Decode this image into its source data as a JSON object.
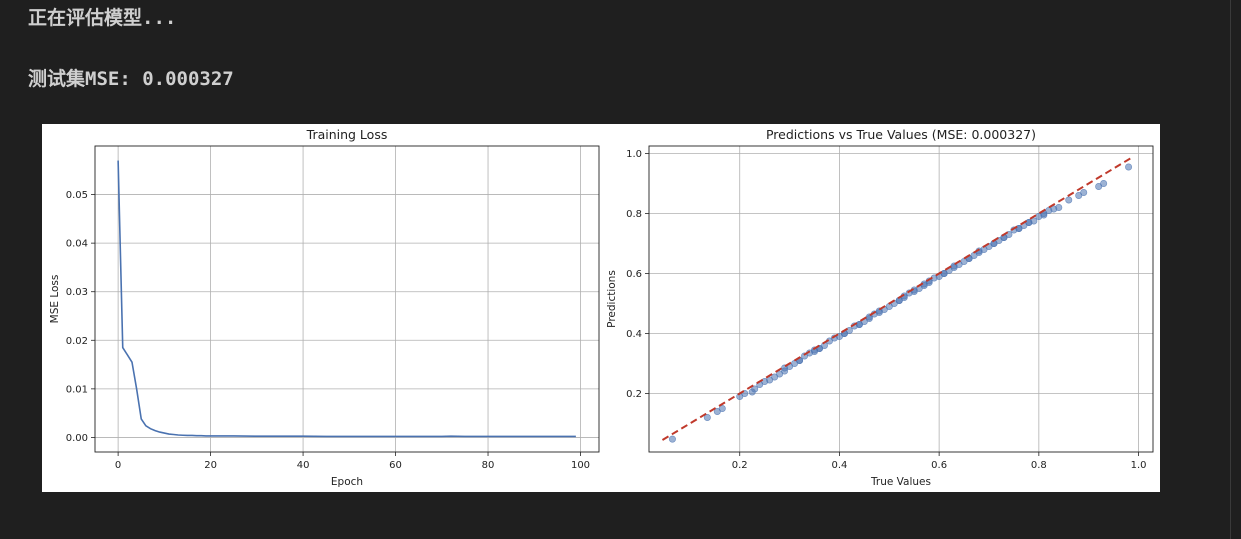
{
  "output": {
    "line1": "正在评估模型...",
    "line2": "测试集MSE: 0.000327"
  },
  "colors": {
    "background": "#1f1f1f",
    "text": "#cfcfcf",
    "loss_line": "#4a72b0",
    "scatter_points": "#4a72b0",
    "ideal_line": "#c0392b"
  },
  "chart_data": [
    {
      "type": "line",
      "title": "Training Loss",
      "xlabel": "Epoch",
      "ylabel": "MSE Loss",
      "xlim": [
        -5,
        104
      ],
      "ylim": [
        -0.003,
        0.06
      ],
      "xticks": [
        0,
        20,
        40,
        60,
        80,
        100
      ],
      "xtick_labels": [
        "0",
        "20",
        "40",
        "60",
        "80",
        "100"
      ],
      "yticks": [
        0.0,
        0.01,
        0.02,
        0.03,
        0.04,
        0.05
      ],
      "ytick_labels": [
        "0.00",
        "0.01",
        "0.02",
        "0.03",
        "0.04",
        "0.05"
      ],
      "grid": true,
      "series": [
        {
          "x": [
            0,
            1,
            2,
            3,
            4,
            5,
            6,
            7,
            8,
            9,
            10,
            11,
            12,
            13,
            14,
            15,
            16,
            17,
            18,
            19,
            20,
            22,
            25,
            30,
            35,
            40,
            45,
            50,
            55,
            60,
            65,
            70,
            72,
            75,
            80,
            85,
            90,
            95,
            99
          ],
          "y": [
            0.057,
            0.0185,
            0.017,
            0.0155,
            0.01,
            0.0038,
            0.0024,
            0.0018,
            0.0014,
            0.0011,
            0.0009,
            0.0007,
            0.0006,
            0.0005,
            0.00045,
            0.0004,
            0.0004,
            0.00035,
            0.00035,
            0.0003,
            0.0003,
            0.0003,
            0.0003,
            0.00025,
            0.00025,
            0.00025,
            0.0002,
            0.0002,
            0.0002,
            0.0002,
            0.0002,
            0.0002,
            0.00025,
            0.0002,
            0.0002,
            0.0002,
            0.0002,
            0.0002,
            0.0002
          ]
        }
      ]
    },
    {
      "type": "scatter",
      "title": "Predictions vs True Values (MSE: 0.000327)",
      "xlabel": "True Values",
      "ylabel": "Predictions",
      "xlim": [
        0.018,
        1.029
      ],
      "ylim": [
        0.005,
        1.025
      ],
      "xticks": [
        0.2,
        0.4,
        0.6,
        0.8,
        1.0
      ],
      "xtick_labels": [
        "0.2",
        "0.4",
        "0.6",
        "0.8",
        "1.0"
      ],
      "yticks": [
        0.2,
        0.4,
        0.6,
        0.8,
        1.0
      ],
      "ytick_labels": [
        "0.2",
        "0.4",
        "0.6",
        "0.8",
        "1.0"
      ],
      "grid": true,
      "ideal_line": {
        "x": [
          0.045,
          0.985
        ],
        "y": [
          0.045,
          0.985
        ]
      },
      "points_x": [
        0.065,
        0.135,
        0.155,
        0.165,
        0.2,
        0.21,
        0.225,
        0.23,
        0.24,
        0.25,
        0.26,
        0.27,
        0.28,
        0.29,
        0.3,
        0.31,
        0.32,
        0.33,
        0.34,
        0.35,
        0.36,
        0.37,
        0.38,
        0.39,
        0.4,
        0.41,
        0.42,
        0.43,
        0.44,
        0.45,
        0.46,
        0.47,
        0.48,
        0.49,
        0.5,
        0.51,
        0.52,
        0.53,
        0.54,
        0.55,
        0.56,
        0.57,
        0.58,
        0.59,
        0.6,
        0.61,
        0.62,
        0.63,
        0.64,
        0.65,
        0.66,
        0.67,
        0.68,
        0.69,
        0.7,
        0.71,
        0.72,
        0.73,
        0.74,
        0.75,
        0.76,
        0.77,
        0.78,
        0.79,
        0.8,
        0.81,
        0.82,
        0.83,
        0.84,
        0.86,
        0.88,
        0.89,
        0.92,
        0.93,
        0.98,
        0.32,
        0.36,
        0.41,
        0.46,
        0.52,
        0.57,
        0.63,
        0.68,
        0.73,
        0.78,
        0.29,
        0.35,
        0.44,
        0.55,
        0.61,
        0.66,
        0.71,
        0.76,
        0.81,
        0.48,
        0.53,
        0.58
      ],
      "points_y": [
        0.048,
        0.12,
        0.14,
        0.15,
        0.19,
        0.2,
        0.205,
        0.215,
        0.23,
        0.24,
        0.245,
        0.255,
        0.265,
        0.285,
        0.29,
        0.3,
        0.31,
        0.325,
        0.335,
        0.345,
        0.35,
        0.36,
        0.375,
        0.385,
        0.39,
        0.4,
        0.41,
        0.425,
        0.43,
        0.44,
        0.45,
        0.465,
        0.47,
        0.48,
        0.49,
        0.5,
        0.51,
        0.52,
        0.535,
        0.545,
        0.55,
        0.56,
        0.57,
        0.585,
        0.59,
        0.6,
        0.61,
        0.625,
        0.63,
        0.64,
        0.65,
        0.66,
        0.67,
        0.68,
        0.69,
        0.7,
        0.71,
        0.72,
        0.73,
        0.745,
        0.75,
        0.76,
        0.77,
        0.775,
        0.79,
        0.795,
        0.81,
        0.815,
        0.82,
        0.845,
        0.86,
        0.87,
        0.89,
        0.9,
        0.955,
        0.31,
        0.35,
        0.4,
        0.455,
        0.51,
        0.565,
        0.62,
        0.675,
        0.72,
        0.77,
        0.275,
        0.34,
        0.43,
        0.54,
        0.6,
        0.65,
        0.7,
        0.75,
        0.8,
        0.475,
        0.525,
        0.575
      ]
    }
  ]
}
